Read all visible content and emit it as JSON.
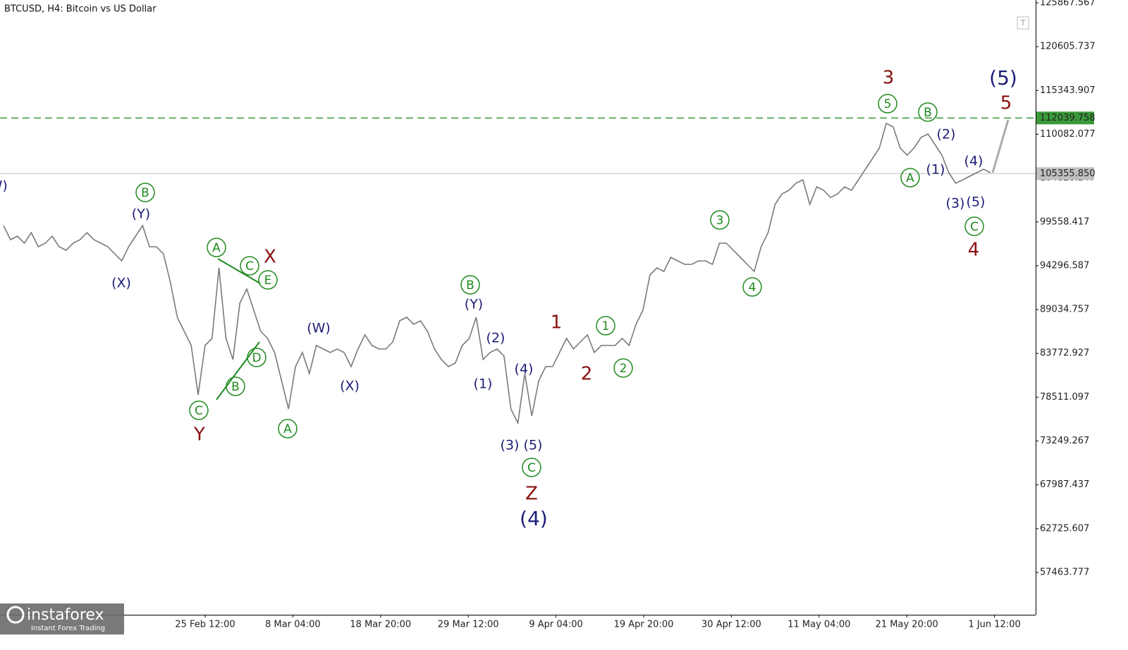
{
  "chart_data": {
    "type": "line",
    "title": "BTCUSD, H4:  Bitcoin vs US Dollar",
    "series": [
      {
        "name": "BTCUSD",
        "color": "#7a7a7a",
        "values": [
          99115,
          97422,
          97845,
          96998,
          98268,
          96575,
          96998,
          97845,
          96575,
          96152,
          96998,
          97422,
          98268,
          97422,
          96998,
          96575,
          95728,
          94882,
          96575,
          97845,
          99115,
          96575,
          96575,
          95728,
          92342,
          88109,
          86416,
          84723,
          78796,
          84723,
          85569,
          94035,
          85569,
          83029,
          89802,
          91495,
          88956,
          86416,
          85569,
          83876,
          80490,
          77103,
          82183,
          83876,
          81336,
          84723,
          84299,
          83876,
          84299,
          83876,
          82183,
          84299,
          85992,
          84723,
          84299,
          84299,
          85146,
          87686,
          88109,
          87262,
          87686,
          86416,
          84299,
          83029,
          82183,
          82606,
          84723,
          85569,
          88109,
          83029,
          83876,
          84299,
          83453,
          77103,
          75410,
          81336,
          76257,
          80490,
          82183,
          82183,
          83876,
          85569,
          84299,
          85146,
          85992,
          83876,
          84723,
          84723,
          84723,
          85569,
          84723,
          87262,
          88956,
          93189,
          94035,
          93612,
          95305,
          94882,
          94458,
          94458,
          94882,
          94882,
          94458,
          96998,
          96998,
          96152,
          95305,
          94458,
          93612,
          96575,
          98268,
          101655,
          102924,
          103348,
          104194,
          104618,
          101655,
          103771,
          103348,
          102501,
          102924,
          103771,
          103348,
          104618,
          105888,
          107157,
          108427,
          111390,
          110967,
          108427,
          107581,
          108427,
          109697,
          110121,
          108851,
          107581,
          105464,
          104194,
          104618,
          105041,
          105464,
          105888,
          105464
        ]
      }
    ],
    "ylim": [
      52384,
      126206
    ],
    "yticks": [
      125867.567,
      120605.737,
      115343.907,
      110082.077,
      104820.247,
      99558.417,
      94296.587,
      89034.757,
      83772.927,
      78511.097,
      73249.267,
      67987.437,
      62725.607,
      57463.777
    ],
    "x_axis_labels": [
      "25 Feb 12:00",
      "8 Mar 04:00",
      "18 Mar 20:00",
      "29 Mar 12:00",
      "9 Apr 04:00",
      "19 Apr 20:00",
      "30 Apr 12:00",
      "11 May 04:00",
      "21 May 20:00",
      "1 Jun 12:00"
    ],
    "levels": [
      {
        "value": 112039.758,
        "label": "112039.758",
        "color": "#3a9a3a",
        "style": "dashed"
      },
      {
        "value": 105355.85,
        "label": "105355.850",
        "color": "#c0c0c0",
        "style": "solid"
      }
    ],
    "wave_labels": [
      {
        "text": "(W)",
        "color": "#1c1c78",
        "circled": false
      },
      {
        "text": "B",
        "color": "#1f8a1f",
        "circled": true
      },
      {
        "text": "(Y)",
        "color": "#1c1c78",
        "circled": false
      },
      {
        "text": "(X)",
        "color": "#1c1c78",
        "circled": false
      },
      {
        "text": "A",
        "color": "#1f8a1f",
        "circled": true
      },
      {
        "text": "C",
        "color": "#1f8a1f",
        "circled": true
      },
      {
        "text": "X",
        "color": "#8b1010",
        "circled": false
      },
      {
        "text": "E",
        "color": "#1f8a1f",
        "circled": true
      },
      {
        "text": "D",
        "color": "#1f8a1f",
        "circled": true
      },
      {
        "text": "B",
        "color": "#1f8a1f",
        "circled": true
      },
      {
        "text": "C",
        "color": "#1f8a1f",
        "circled": true
      },
      {
        "text": "Y",
        "color": "#8b1010",
        "circled": false
      },
      {
        "text": "A",
        "color": "#1f8a1f",
        "circled": true
      },
      {
        "text": "(W)",
        "color": "#1c1c78",
        "circled": false
      },
      {
        "text": "(X)",
        "color": "#1c1c78",
        "circled": false
      },
      {
        "text": "B",
        "color": "#1f8a1f",
        "circled": true
      },
      {
        "text": "(Y)",
        "color": "#1c1c78",
        "circled": false
      },
      {
        "text": "(2)",
        "color": "#1c1c78",
        "circled": false
      },
      {
        "text": "(1)",
        "color": "#1c1c78",
        "circled": false
      },
      {
        "text": "(4)",
        "color": "#1c1c78",
        "circled": false
      },
      {
        "text": "(3)",
        "color": "#1c1c78",
        "circled": false
      },
      {
        "text": "(5)",
        "color": "#1c1c78",
        "circled": false
      },
      {
        "text": "C",
        "color": "#1f8a1f",
        "circled": true
      },
      {
        "text": "Z",
        "color": "#8b1010",
        "circled": false
      },
      {
        "text": "(4)",
        "color": "#1c1c78",
        "circled": false
      },
      {
        "text": "1",
        "color": "#8b1010",
        "circled": false
      },
      {
        "text": "2",
        "color": "#8b1010",
        "circled": false
      },
      {
        "text": "1",
        "color": "#1f8a1f",
        "circled": true
      },
      {
        "text": "2",
        "color": "#1f8a1f",
        "circled": true
      },
      {
        "text": "3",
        "color": "#1f8a1f",
        "circled": true
      },
      {
        "text": "4",
        "color": "#1f8a1f",
        "circled": true
      },
      {
        "text": "3",
        "color": "#8b1010",
        "circled": false
      },
      {
        "text": "5",
        "color": "#1f8a1f",
        "circled": true
      },
      {
        "text": "B",
        "color": "#1f8a1f",
        "circled": true
      },
      {
        "text": "(2)",
        "color": "#1c1c78",
        "circled": false
      },
      {
        "text": "A",
        "color": "#1f8a1f",
        "circled": true
      },
      {
        "text": "(1)",
        "color": "#1c1c78",
        "circled": false
      },
      {
        "text": "(4)",
        "color": "#1c1c78",
        "circled": false
      },
      {
        "text": "(3)",
        "color": "#1c1c78",
        "circled": false
      },
      {
        "text": "(5)",
        "color": "#1c1c78",
        "circled": false
      },
      {
        "text": "C",
        "color": "#1f8a1f",
        "circled": true
      },
      {
        "text": "4",
        "color": "#8b1010",
        "circled": false
      },
      {
        "text": "(5)",
        "color": "#1c1c78",
        "circled": false
      },
      {
        "text": "5",
        "color": "#8b1010",
        "circled": false
      }
    ]
  },
  "toolbar_button": "T",
  "logo": {
    "name": "instaforex",
    "tagline": "Instant Forex Trading"
  }
}
